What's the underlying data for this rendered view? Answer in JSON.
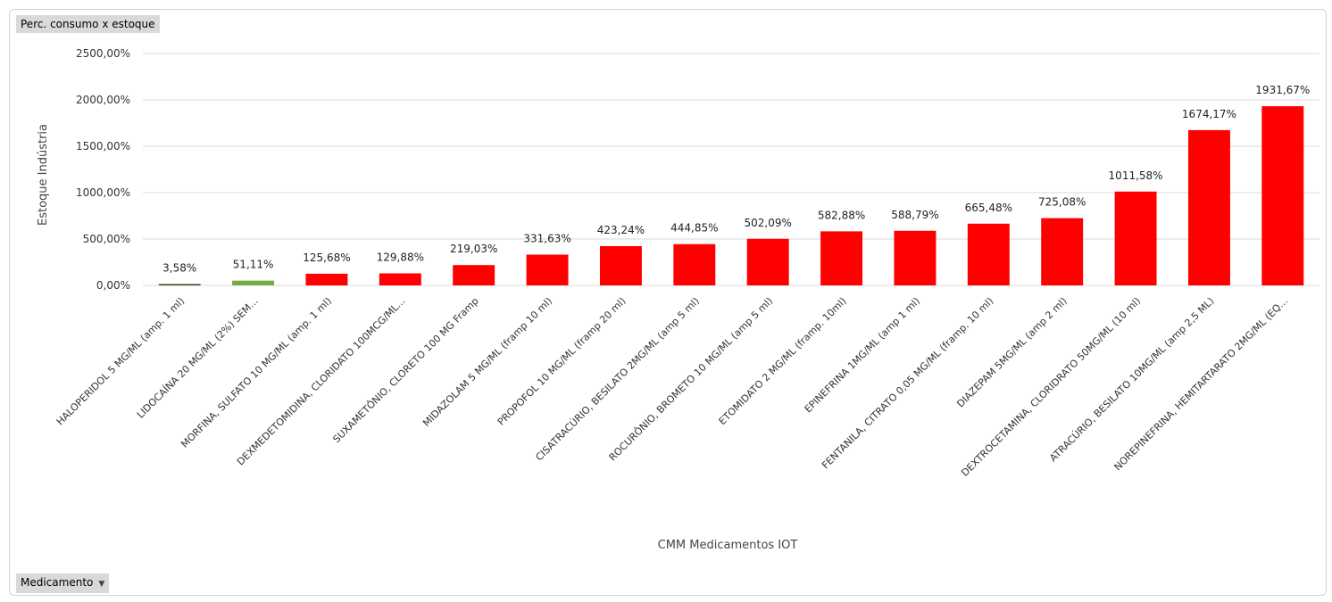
{
  "pivot": {
    "value_field": "Perc. consumo x estoque",
    "axis_field": "Medicamento"
  },
  "colors": {
    "bar_default": "#ff0000",
    "bar_low": "#2e4a1f",
    "bar_mid": "#70ad47",
    "gridline": "#d9d9d9"
  },
  "chart_data": {
    "type": "bar",
    "title": "",
    "xlabel": "CMM Medicamentos IOT",
    "ylabel": "Estoque Indústria",
    "ylim": [
      0,
      2500
    ],
    "yticks": [
      "0,00%",
      "500,00%",
      "1000,00%",
      "1500,00%",
      "2000,00%",
      "2500,00%"
    ],
    "categories": [
      "HALOPERIDOL 5 MG/ML (amp. 1 ml)",
      "LIDOCAÍNA 20 MG/ML (2%) SEM...",
      "MORFINA, SULFATO 10 MG/ML (amp. 1 ml)",
      "DEXMEDETOMIDINA, CLORIDATO 100MCG/ML...",
      "SUXAMETÔNIO, CLORETO 100 MG Framp",
      "MIDAZOLAM 5 MG/ML (framp 10 ml)",
      "PROPOFOL 10 MG/ML (framp 20 ml)",
      "CISATRACÚRIO, BESILATO 2MG/ML (amp 5 ml)",
      "ROCURÔNIO, BROMETO 10 MG/ML (amp 5 ml)",
      "ETOMIDATO 2 MG/ML (framp. 10ml)",
      "EPINEFRINA 1MG/ML (amp 1 ml)",
      "FENTANILA, CITRATO 0,05 MG/ML (framp. 10 ml)",
      "DIAZEPAM 5MG/ML (amp 2 ml)",
      "DEXTROCETAMINA, CLORIDRATO 50MG/ML (10 ml)",
      "ATRACÚRIO, BESILATO 10MG/ML (amp 2,5 ML)",
      "NOREPINEFRINA, HEMITARTARATO 2MG/ML (EQ..."
    ],
    "values": [
      3.58,
      51.11,
      125.68,
      129.88,
      219.03,
      331.63,
      423.24,
      444.85,
      502.09,
      582.88,
      588.79,
      665.48,
      725.08,
      1011.58,
      1674.17,
      1931.67
    ],
    "data_labels": [
      "3,58%",
      "51,11%",
      "125,68%",
      "129,88%",
      "219,03%",
      "331,63%",
      "423,24%",
      "444,85%",
      "502,09%",
      "582,88%",
      "588,79%",
      "665,48%",
      "725,08%",
      "1011,58%",
      "1674,17%",
      "1931,67%"
    ],
    "bar_colors": [
      "#2e4a1f",
      "#70ad47",
      "#ff0000",
      "#ff0000",
      "#ff0000",
      "#ff0000",
      "#ff0000",
      "#ff0000",
      "#ff0000",
      "#ff0000",
      "#ff0000",
      "#ff0000",
      "#ff0000",
      "#ff0000",
      "#ff0000",
      "#ff0000"
    ],
    "grid": true,
    "legend": "none"
  }
}
